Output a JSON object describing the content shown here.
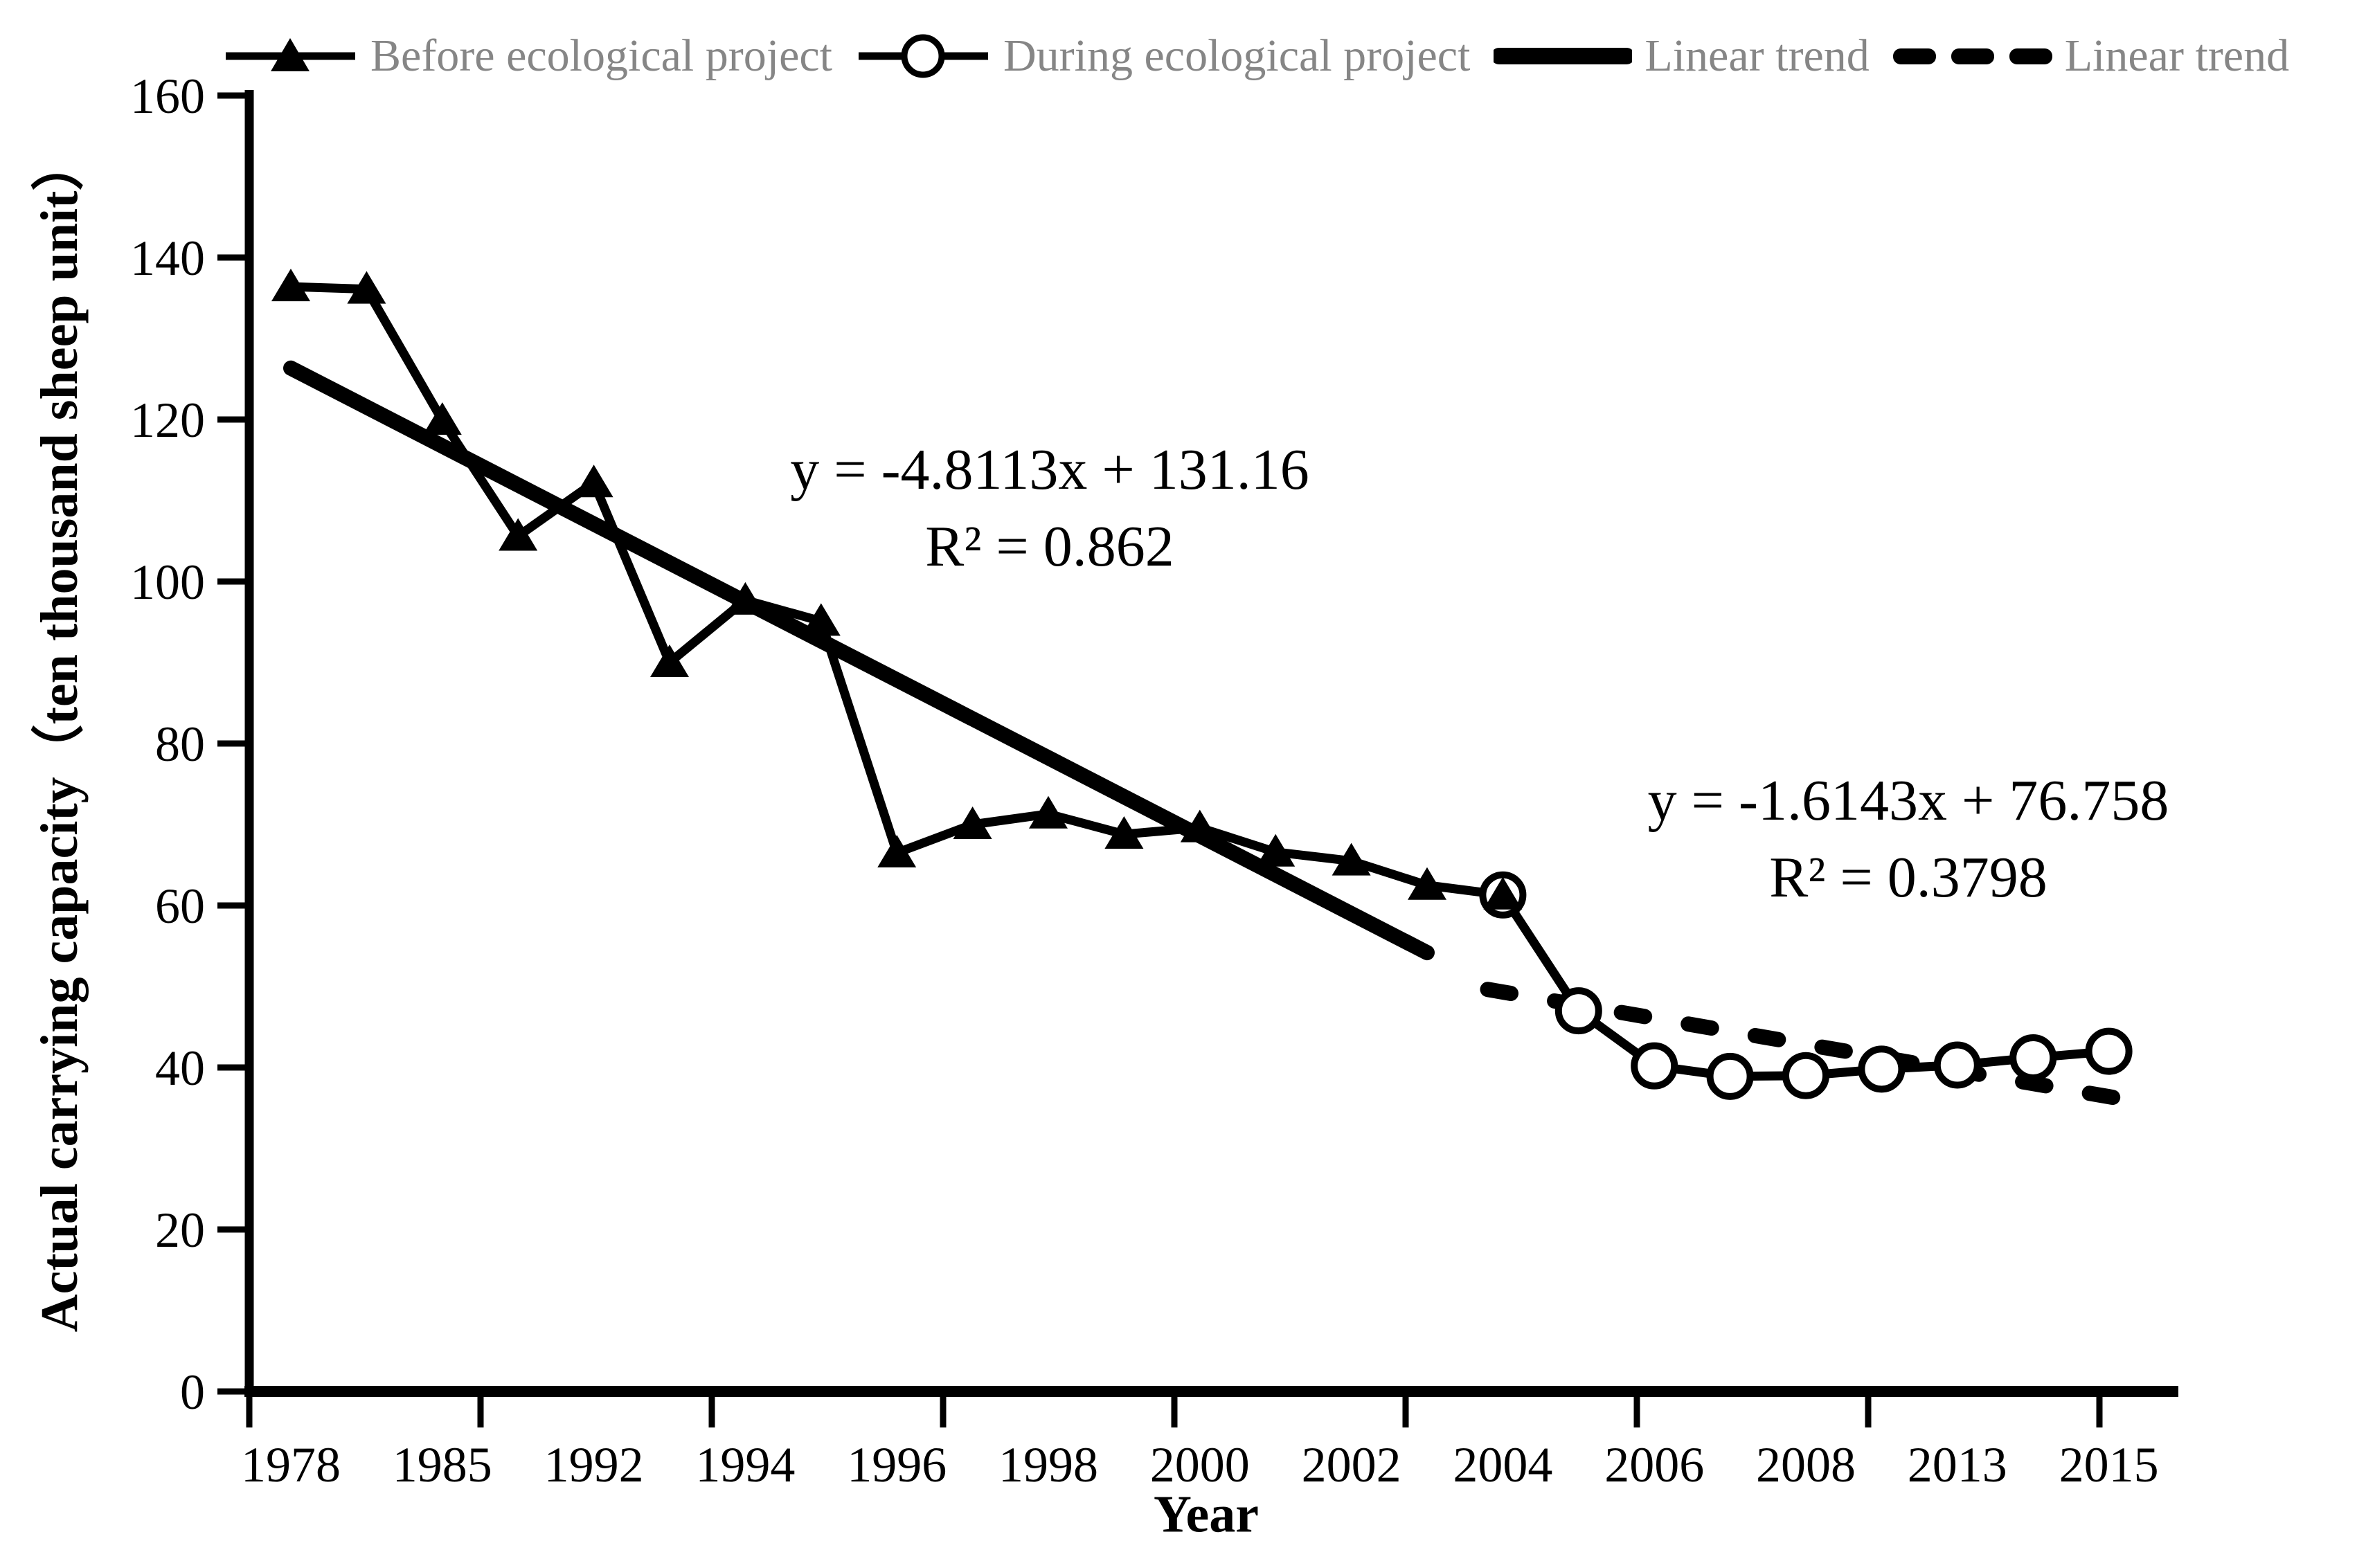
{
  "legend": {
    "text_color": "#868686",
    "items": [
      {
        "label": "Before ecological project",
        "marker": "line-with-filled-triangle"
      },
      {
        "label": "During ecological project",
        "marker": "line-with-open-circle"
      },
      {
        "label": "Linear trend",
        "marker": "thick-solid-line"
      },
      {
        "label": "Linear trend",
        "marker": "thick-dashed-line"
      }
    ]
  },
  "chart_data": {
    "type": "line",
    "title": "",
    "xlabel": "Year",
    "ylabel": "Actual carrying capacity（ten thousand sheep unit）",
    "grid": "off",
    "legend_position": "top",
    "y_axis": {
      "min": 0,
      "max": 160,
      "step": 20,
      "tick_labels": [
        "0",
        "20",
        "40",
        "60",
        "80",
        "100",
        "120",
        "140",
        "160"
      ]
    },
    "x_axis": {
      "n_categories": 25,
      "tick_labels": [
        "1978",
        "1985",
        "1992",
        "1994",
        "1996",
        "1998",
        "2000",
        "2002",
        "2004",
        "2006",
        "2008",
        "2013",
        "2015"
      ],
      "label_category_indices": [
        1,
        3,
        5,
        7,
        9,
        11,
        13,
        15,
        17,
        19,
        21,
        23,
        25
      ]
    },
    "series": [
      {
        "name": "Before ecological project",
        "marker": "filled-triangle",
        "category_indices": [
          1,
          2,
          3,
          4,
          5,
          6,
          7,
          8,
          9,
          10,
          11,
          12,
          13,
          14,
          15,
          16,
          17
        ],
        "values": [
          136.4,
          136.1,
          119.9,
          105.6,
          112.2,
          90.0,
          97.7,
          95.1,
          66.5,
          70.0,
          71.3,
          68.8,
          69.6,
          66.6,
          65.5,
          62.5,
          61.3
        ]
      },
      {
        "name": "During ecological project",
        "marker": "open-circle",
        "category_indices": [
          17,
          18,
          19,
          20,
          21,
          22,
          23,
          24,
          25
        ],
        "values": [
          61.3,
          47.0,
          40.2,
          38.9,
          39.0,
          39.8,
          40.3,
          41.2,
          42.0
        ]
      }
    ],
    "trend_lines": [
      {
        "name": "Linear trend",
        "style": "solid",
        "slope": -4.8113,
        "intercept": 131.16,
        "x_start": 1,
        "x_end": 16,
        "equation": "y = -4.8113x + 131.16",
        "r_squared": "R² = 0.862"
      },
      {
        "name": "Linear trend",
        "style": "dashed",
        "slope": -1.6143,
        "intercept": 76.758,
        "x_start": 16.8,
        "x_end": 25.2,
        "equation": "y = -1.6143x + 76.758",
        "r_squared": "R² = 0.3798"
      }
    ]
  },
  "colors": {
    "foreground": "#000000",
    "legend_text": "#868686",
    "background": "#ffffff"
  }
}
